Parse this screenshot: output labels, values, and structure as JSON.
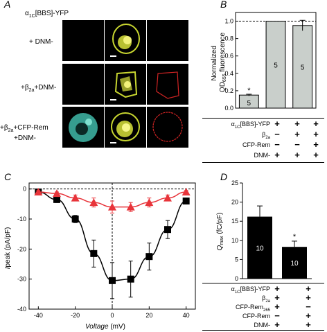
{
  "panel_a": {
    "letter": "A",
    "construct_prefix": "α",
    "construct_sub": "1C",
    "construct_suffix": "[BBS]-YFP",
    "rows": [
      {
        "label_lines": [
          "+ DNM-"
        ]
      },
      {
        "label_lines": [
          "+β2a+DNM-"
        ]
      },
      {
        "label_lines": [
          "+β2a+CFP-Rem",
          "+DNM-"
        ]
      }
    ],
    "channel_colors": {
      "cfp": "#3fb9a8",
      "yfp": "#d8e23a",
      "dnm": "#d22424"
    }
  },
  "panel_b": {
    "letter": "B",
    "table_rows": [
      {
        "label": "α1C[BBS]-YFP",
        "values": [
          "+",
          "+",
          "+"
        ]
      },
      {
        "label": "β2a",
        "values": [
          "−",
          "+",
          "+"
        ]
      },
      {
        "label": "CFP-Rem",
        "values": [
          "−",
          "−",
          "+"
        ]
      },
      {
        "label": "DNM-",
        "values": [
          "+",
          "+",
          "+"
        ]
      }
    ]
  },
  "panel_c": {
    "letter": "C"
  },
  "panel_d": {
    "letter": "D",
    "table_rows": [
      {
        "label": "α1C[BBS]-YFP",
        "values": [
          "+",
          "+"
        ]
      },
      {
        "label": "β2a",
        "values": [
          "+",
          "+"
        ]
      },
      {
        "label": "CFP-Rem265",
        "values": [
          "+",
          "−"
        ]
      },
      {
        "label": "CFP-Rem",
        "values": [
          "−",
          "+"
        ]
      },
      {
        "label": "DNM-",
        "values": [
          "+",
          "+"
        ]
      }
    ]
  },
  "chart_data": [
    {
      "id": "B",
      "type": "bar",
      "ylabel": "Normalized QD655 fluorescence",
      "ylim": [
        0,
        1.1
      ],
      "yticks": [
        0.0,
        0.2,
        0.4,
        0.6,
        0.8,
        1.0
      ],
      "values": [
        0.15,
        1.0,
        0.95
      ],
      "errors": [
        0.01,
        0.0,
        0.06
      ],
      "n_labels": [
        "5",
        "5",
        "5"
      ],
      "significance": [
        "*",
        "",
        ""
      ],
      "bar_color": "#c9cfcb",
      "reference_line": 1.0
    },
    {
      "id": "C",
      "type": "line",
      "xlabel": "Voltage (mV)",
      "ylabel": "Ipeak (pA/pF)",
      "xlim": [
        -45,
        45
      ],
      "ylim": [
        -40,
        2
      ],
      "xticks": [
        -40,
        -20,
        0,
        20,
        40
      ],
      "yticks": [
        0,
        -10,
        -20,
        -30,
        -40
      ],
      "series": [
        {
          "marker": "square",
          "color": "#000000",
          "x": [
            -40,
            -30,
            -20,
            -10,
            0,
            10,
            20,
            30,
            40
          ],
          "y": [
            -1,
            -3.5,
            -10,
            -21.5,
            -30.5,
            -30,
            -22.5,
            -13.5,
            -4
          ],
          "err": [
            0.5,
            1,
            1.2,
            4.5,
            6,
            6,
            4.5,
            3,
            1
          ]
        },
        {
          "marker": "triangle",
          "color": "#e8343a",
          "x": [
            -40,
            -30,
            -20,
            -10,
            0,
            10,
            20,
            30,
            40
          ],
          "y": [
            -1,
            -1.5,
            -3,
            -4.5,
            -6,
            -6,
            -4.5,
            -3,
            -1
          ],
          "err": [
            0.5,
            0.5,
            1,
            1.5,
            2,
            1.5,
            1.5,
            1,
            0.5
          ]
        }
      ]
    },
    {
      "id": "D",
      "type": "bar",
      "ylabel": "Qmax (fC/pF)",
      "ylim": [
        0,
        25
      ],
      "yticks": [
        0,
        5,
        10,
        15,
        20,
        25
      ],
      "values": [
        16.2,
        8.3
      ],
      "errors": [
        2.8,
        1.5
      ],
      "n_labels": [
        "10",
        "10"
      ],
      "significance": [
        "",
        "*"
      ],
      "bar_color": "#000000"
    }
  ]
}
